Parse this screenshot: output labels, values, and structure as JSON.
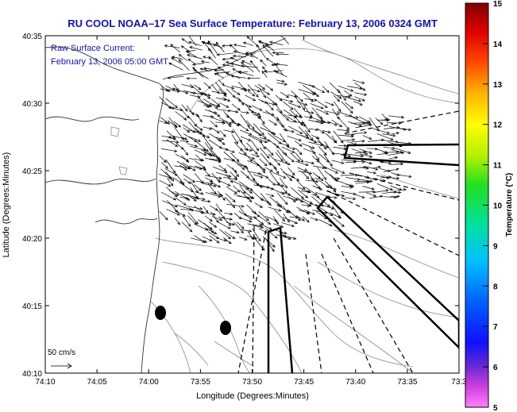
{
  "title": "RU COOL  NOAA–17  Sea Surface Temperature:  February 13, 2006 0324 GMT",
  "legend": {
    "line1": "Raw Surface Current:",
    "line2": "February 13, 2006 05:00 GMT"
  },
  "scale_label": "50 cm/s",
  "x_axis": {
    "label": "Longitude (Degrees:Minutes)",
    "ticks": [
      "74:10",
      "74:05",
      "74:00",
      "73:55",
      "73:50",
      "73:45",
      "73:40",
      "73:35",
      "73:3"
    ]
  },
  "y_axis": {
    "label": "Latitude (Degrees:Minutes)",
    "ticks": [
      "40:35",
      "40:30",
      "40:25",
      "40:20",
      "40:15",
      "40:10"
    ]
  },
  "colorbar": {
    "label": "Temperature (°C)",
    "ticks": [
      "15",
      "14",
      "13",
      "12",
      "11",
      "10",
      "9",
      "8",
      "7",
      "6",
      "5"
    ],
    "range": [
      5,
      15
    ]
  }
}
